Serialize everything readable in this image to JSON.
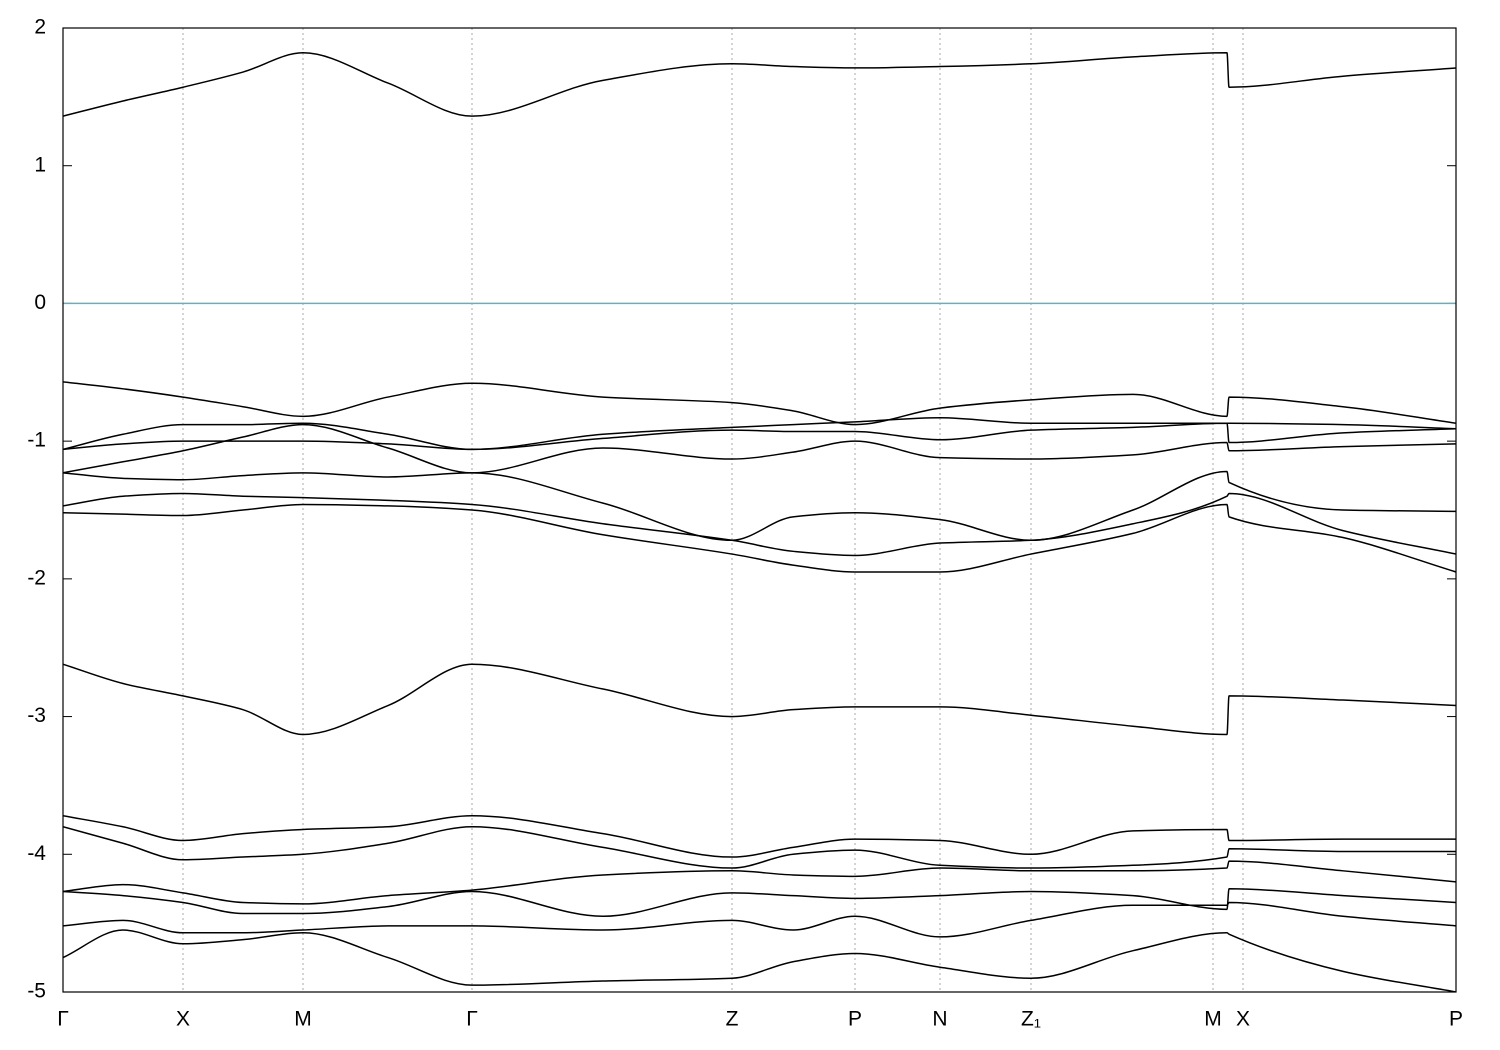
{
  "chart_data": {
    "type": "line",
    "x": [
      0,
      0.6,
      1.2,
      1.8,
      2.4,
      3.25,
      4.09,
      5.4,
      6.69,
      7.3,
      7.92,
      8.77,
      9.68,
      10.7,
      11.64,
      11.66,
      12.8,
      13.93
    ],
    "xlim": [
      0,
      13.93
    ],
    "xticks": [
      {
        "value": 0,
        "label": "Γ"
      },
      {
        "value": 1.2,
        "label": "X"
      },
      {
        "value": 2.4,
        "label": "M"
      },
      {
        "value": 4.09,
        "label": "Γ"
      },
      {
        "value": 6.69,
        "label": "Z"
      },
      {
        "value": 7.92,
        "label": "P"
      },
      {
        "value": 8.77,
        "label": "N"
      },
      {
        "value": 9.68,
        "label": "Z₁"
      },
      {
        "value": 11.5,
        "label": "M"
      },
      {
        "value": 11.8,
        "label": "X"
      },
      {
        "value": 13.93,
        "label": "P"
      }
    ],
    "ylim": [
      -5,
      2
    ],
    "yticks": [
      -5,
      -4,
      -3,
      -2,
      -1,
      0,
      1,
      2
    ],
    "grid": true,
    "reference_line": {
      "value": 0,
      "color": "#5ab4c8"
    },
    "color": "#000000",
    "series": [
      {
        "values": [
          1.36,
          1.47,
          1.57,
          1.68,
          1.82,
          1.6,
          1.36,
          1.62,
          1.74,
          1.72,
          1.71,
          1.72,
          1.74,
          1.79,
          1.82,
          1.57,
          1.65,
          1.71
        ]
      },
      {
        "values": [
          -0.57,
          -0.62,
          -0.68,
          -0.75,
          -0.82,
          -0.68,
          -0.58,
          -0.68,
          -0.72,
          -0.78,
          -0.88,
          -0.76,
          -0.7,
          -0.66,
          -0.82,
          -0.68,
          -0.75,
          -0.87
        ]
      },
      {
        "values": [
          -1.06,
          -0.95,
          -0.88,
          -0.88,
          -0.87,
          -0.95,
          -1.06,
          -0.95,
          -0.9,
          -0.88,
          -0.86,
          -0.83,
          -0.87,
          -0.87,
          -0.87,
          -0.87,
          -0.88,
          -0.91
        ]
      },
      {
        "values": [
          -1.06,
          -1.02,
          -1.0,
          -1.0,
          -1.0,
          -1.02,
          -1.06,
          -0.98,
          -0.92,
          -0.93,
          -0.93,
          -0.99,
          -0.92,
          -0.9,
          -0.87,
          -1.01,
          -0.94,
          -0.91
        ]
      },
      {
        "values": [
          -1.23,
          -1.15,
          -1.07,
          -0.97,
          -0.88,
          -1.05,
          -1.23,
          -1.05,
          -1.13,
          -1.08,
          -1.0,
          -1.12,
          -1.13,
          -1.1,
          -1.01,
          -1.07,
          -1.04,
          -1.02
        ]
      },
      {
        "values": [
          -1.23,
          -1.27,
          -1.28,
          -1.25,
          -1.23,
          -1.26,
          -1.23,
          -1.45,
          -1.72,
          -1.55,
          -1.52,
          -1.57,
          -1.72,
          -1.5,
          -1.22,
          -1.3,
          -1.5,
          -1.51
        ]
      },
      {
        "values": [
          -1.47,
          -1.4,
          -1.38,
          -1.4,
          -1.41,
          -1.43,
          -1.46,
          -1.6,
          -1.72,
          -1.8,
          -1.83,
          -1.74,
          -1.72,
          -1.6,
          -1.4,
          -1.38,
          -1.65,
          -1.82
        ]
      },
      {
        "values": [
          -1.52,
          -1.53,
          -1.54,
          -1.5,
          -1.46,
          -1.47,
          -1.5,
          -1.68,
          -1.82,
          -1.9,
          -1.95,
          -1.95,
          -1.82,
          -1.67,
          -1.46,
          -1.55,
          -1.7,
          -1.95
        ]
      },
      {
        "values": [
          -2.62,
          -2.76,
          -2.85,
          -2.95,
          -3.13,
          -2.92,
          -2.62,
          -2.8,
          -3.0,
          -2.95,
          -2.93,
          -2.93,
          -2.99,
          -3.07,
          -3.13,
          -2.85,
          -2.88,
          -2.92
        ]
      },
      {
        "values": [
          -3.72,
          -3.8,
          -3.9,
          -3.85,
          -3.82,
          -3.8,
          -3.72,
          -3.85,
          -4.02,
          -3.95,
          -3.89,
          -3.9,
          -4.0,
          -3.83,
          -3.82,
          -3.9,
          -3.89,
          -3.89
        ]
      },
      {
        "values": [
          -3.8,
          -3.92,
          -4.04,
          -4.02,
          -4.0,
          -3.92,
          -3.8,
          -3.95,
          -4.1,
          -4.0,
          -3.97,
          -4.08,
          -4.1,
          -4.08,
          -4.02,
          -3.96,
          -3.98,
          -3.98
        ]
      },
      {
        "values": [
          -4.27,
          -4.22,
          -4.28,
          -4.35,
          -4.36,
          -4.3,
          -4.26,
          -4.15,
          -4.12,
          -4.15,
          -4.16,
          -4.1,
          -4.12,
          -4.12,
          -4.1,
          -4.05,
          -4.12,
          -4.2
        ]
      },
      {
        "values": [
          -4.27,
          -4.3,
          -4.35,
          -4.43,
          -4.43,
          -4.38,
          -4.27,
          -4.45,
          -4.28,
          -4.3,
          -4.32,
          -4.3,
          -4.27,
          -4.3,
          -4.4,
          -4.25,
          -4.3,
          -4.35
        ]
      },
      {
        "values": [
          -4.52,
          -4.48,
          -4.57,
          -4.57,
          -4.55,
          -4.52,
          -4.52,
          -4.55,
          -4.48,
          -4.55,
          -4.45,
          -4.6,
          -4.48,
          -4.37,
          -4.37,
          -4.35,
          -4.45,
          -4.52
        ]
      },
      {
        "values": [
          -4.75,
          -4.55,
          -4.65,
          -4.62,
          -4.57,
          -4.75,
          -4.95,
          -4.92,
          -4.9,
          -4.78,
          -4.72,
          -4.82,
          -4.9,
          -4.7,
          -4.57,
          -4.58,
          -4.85,
          -5.0
        ]
      }
    ]
  }
}
